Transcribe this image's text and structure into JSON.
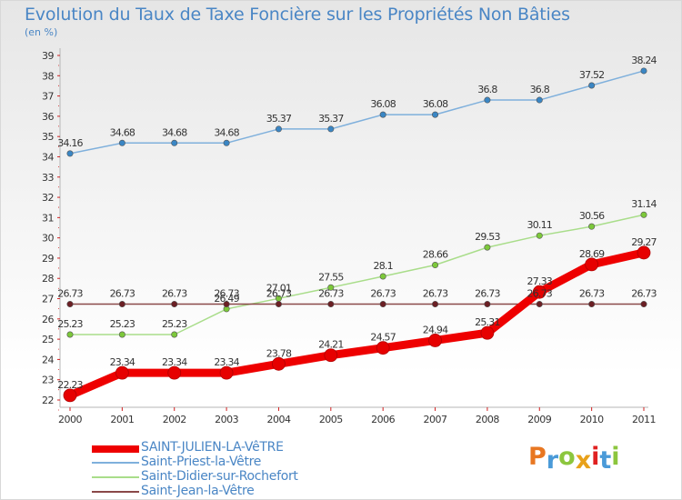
{
  "chart_data": {
    "type": "line",
    "title": "Evolution du Taux de Taxe Foncière sur les Propriétés Non Bâties",
    "subtitle": "(en %)",
    "x": [
      "2000",
      "2001",
      "2002",
      "2003",
      "2004",
      "2005",
      "2006",
      "2007",
      "2008",
      "2009",
      "2010",
      "2011"
    ],
    "ylim": [
      22,
      39
    ],
    "yticks": [
      22,
      23,
      24,
      25,
      26,
      27,
      28,
      29,
      30,
      31,
      32,
      33,
      34,
      35,
      36,
      37,
      38,
      39
    ],
    "grid": false,
    "legend_position": "bottom-left",
    "series": [
      {
        "name": "Saint-Priest-la-Vêtre",
        "color": "#7fb0dc",
        "marker_color": "#3a86c4",
        "values": [
          34.16,
          34.68,
          34.68,
          34.68,
          35.37,
          35.37,
          36.08,
          36.08,
          36.8,
          36.8,
          37.52,
          38.24
        ],
        "labels": [
          "34.16",
          "34.68",
          "34.68",
          "34.68",
          "35.37",
          "35.37",
          "36.08",
          "36.08",
          "36.8",
          "36.8",
          "37.52",
          "38.24"
        ],
        "emphasis": false
      },
      {
        "name": "Saint-Didier-sur-Rochefort",
        "color": "#a9dd8a",
        "marker_color": "#7cc83a",
        "values": [
          25.23,
          25.23,
          25.23,
          26.49,
          27.01,
          27.55,
          28.1,
          28.66,
          29.53,
          30.11,
          30.56,
          31.14
        ],
        "labels": [
          "25.23",
          "25.23",
          "25.23",
          "26.49",
          "27.01",
          "27.55",
          "28.1",
          "28.66",
          "29.53",
          "30.11",
          "30.56",
          "31.14"
        ],
        "emphasis": false
      },
      {
        "name": "Saint-Jean-la-Vêtre",
        "color": "#8a4848",
        "marker_color": "#6b1f24",
        "values": [
          26.73,
          26.73,
          26.73,
          26.73,
          26.73,
          26.73,
          26.73,
          26.73,
          26.73,
          26.73,
          26.73,
          26.73
        ],
        "labels": [
          "26.73",
          "26.73",
          "26.73",
          "26.73",
          "26.73",
          "26.73",
          "26.73",
          "26.73",
          "26.73",
          "26.73",
          "26.73",
          "26.73"
        ],
        "emphasis": false
      },
      {
        "name": "SAINT-JULIEN-LA-VêTRE",
        "color": "#ee0000",
        "marker_color": "#e60000",
        "values": [
          22.23,
          23.34,
          23.34,
          23.34,
          23.78,
          24.21,
          24.57,
          24.94,
          25.31,
          27.33,
          28.69,
          29.27
        ],
        "labels": [
          "22.23",
          "23.34",
          "23.34",
          "23.34",
          "23.78",
          "24.21",
          "24.57",
          "24.94",
          "25.31",
          "27.33",
          "28.69",
          "29.27"
        ],
        "emphasis": true
      }
    ],
    "legend_order": [
      3,
      0,
      1,
      2
    ],
    "axis_color": "#d02020",
    "label_color": "#333333"
  },
  "logo": {
    "letters": [
      "P",
      "r",
      "o",
      "x",
      "i",
      "t",
      "i"
    ],
    "colors": [
      "#e87722",
      "#4a9ad8",
      "#8cc63e",
      "#e8a11a",
      "#e02020",
      "#4a9ad8",
      "#8cc63e"
    ]
  }
}
